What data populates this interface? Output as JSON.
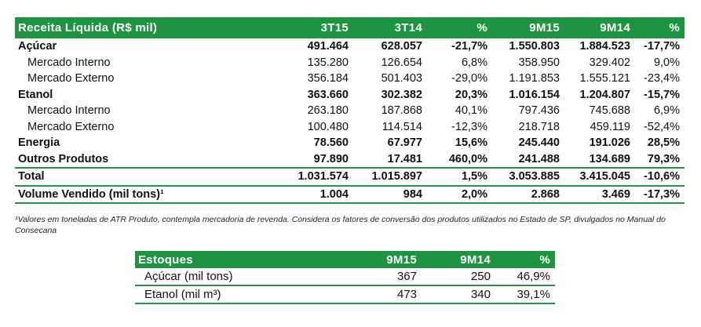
{
  "revenue_table": {
    "header": [
      "Receita Líquida (R$ mil)",
      "3T15",
      "3T14",
      "%",
      "9M15",
      "9M14",
      "%"
    ],
    "rows": [
      {
        "label": "Açúcar",
        "values": [
          "491.464",
          "628.057",
          "-21,7%",
          "1.550.803",
          "1.884.523",
          "-17,7%"
        ]
      },
      {
        "label": "Mercado Interno",
        "values": [
          "135.280",
          "126.654",
          "6,8%",
          "358.950",
          "329.402",
          "9,0%"
        ]
      },
      {
        "label": "Mercado Externo",
        "values": [
          "356.184",
          "501.403",
          "-29,0%",
          "1.191.853",
          "1.555.121",
          "-23,4%"
        ]
      },
      {
        "label": "Etanol",
        "values": [
          "363.660",
          "302.382",
          "20,3%",
          "1.016.154",
          "1.204.807",
          "-15,7%"
        ]
      },
      {
        "label": "Mercado Interno",
        "values": [
          "263.180",
          "187.868",
          "40,1%",
          "797.436",
          "745.688",
          "6,9%"
        ]
      },
      {
        "label": "Mercado Externo",
        "values": [
          "100.480",
          "114.514",
          "-12,3%",
          "218.718",
          "459.119",
          "-52,4%"
        ]
      },
      {
        "label": "Energia",
        "values": [
          "78.560",
          "67.977",
          "15,6%",
          "245.440",
          "191.026",
          "28,5%"
        ]
      },
      {
        "label": "Outros Produtos",
        "values": [
          "97.890",
          "17.481",
          "460,0%",
          "241.488",
          "134.689",
          "79,3%"
        ]
      },
      {
        "label": "Total",
        "values": [
          "1.031.574",
          "1.015.897",
          "1,5%",
          "3.053.885",
          "3.415.045",
          "-10,6%"
        ]
      },
      {
        "label": "Volume Vendido (mil tons)¹",
        "values": [
          "1.004",
          "984",
          "2,0%",
          "2.868",
          "3.469",
          "-17,3%"
        ]
      }
    ]
  },
  "footnote": "¹Valores em toneladas de ATR Produto, contempla mercadoria de revenda. Considera os fatores de conversão dos produtos utilizados no Estado de SP, divulgados no Manual do Consecana",
  "stock_table": {
    "header": [
      "Estoques",
      "9M15",
      "9M14",
      "%"
    ],
    "rows": [
      {
        "label": "Açúcar (mil tons)",
        "values": [
          "367",
          "250",
          "46,9%"
        ]
      },
      {
        "label": "Etanol (mil m³)",
        "values": [
          "473",
          "340",
          "39,1%"
        ]
      }
    ]
  },
  "colors": {
    "header_green": "#1e9440"
  }
}
